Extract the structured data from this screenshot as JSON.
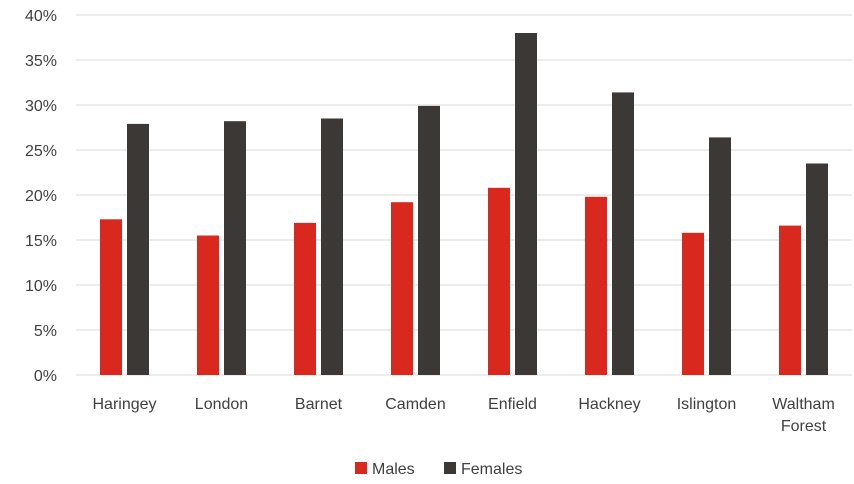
{
  "chart_data": {
    "type": "bar",
    "categories": [
      "Haringey",
      "London",
      "Barnet",
      "Camden",
      "Enfield",
      "Hackney",
      "Islington",
      "Waltham Forest"
    ],
    "category_lines": [
      [
        "Haringey"
      ],
      [
        "London"
      ],
      [
        "Barnet"
      ],
      [
        "Camden"
      ],
      [
        "Enfield"
      ],
      [
        "Hackney"
      ],
      [
        "Islington"
      ],
      [
        "Waltham",
        "Forest"
      ]
    ],
    "series": [
      {
        "name": "Males",
        "color": "#d9281e",
        "values": [
          17.3,
          15.5,
          16.9,
          19.2,
          20.8,
          19.8,
          15.8,
          16.6
        ]
      },
      {
        "name": "Females",
        "color": "#3b3835",
        "values": [
          27.9,
          28.2,
          28.5,
          29.9,
          38.0,
          31.4,
          26.4,
          23.5
        ]
      }
    ],
    "y_ticks": [
      "0%",
      "5%",
      "10%",
      "15%",
      "20%",
      "25%",
      "30%",
      "35%",
      "40%"
    ],
    "ylim": [
      0,
      40
    ],
    "y_unit": "%",
    "title": "",
    "xlabel": "",
    "ylabel": "",
    "grid": true,
    "legend_position": "bottom",
    "gridline_color": "#d9d9d9"
  }
}
